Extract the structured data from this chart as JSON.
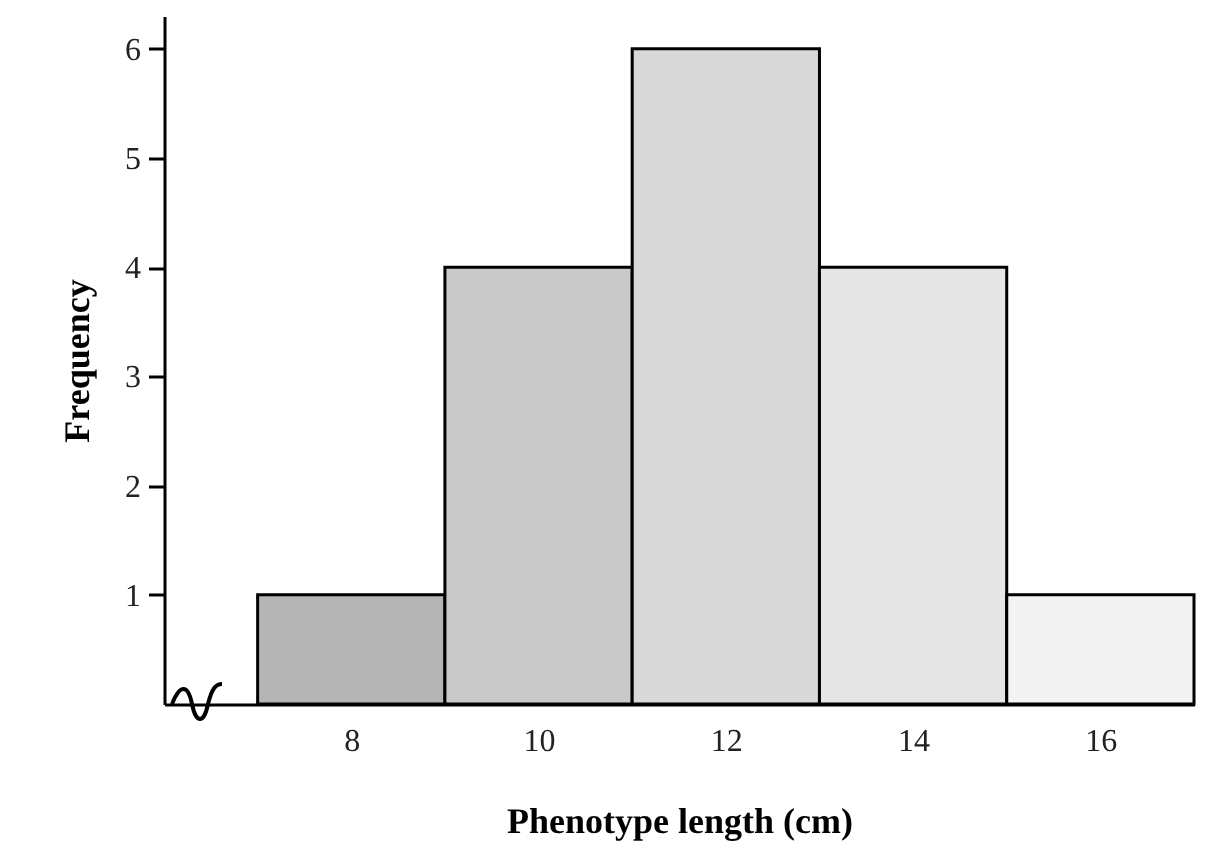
{
  "chart_data": {
    "type": "histogram",
    "xlabel": "Phenotype length (cm)",
    "ylabel": "Frequency",
    "bins": [
      7,
      9,
      11,
      13,
      15,
      17
    ],
    "values": [
      1,
      4,
      6,
      4,
      1
    ],
    "colors": [
      "#b5b5b5",
      "#c9c9c9",
      "#d9d9d9",
      "#e6e6e6",
      "#f3f3f3"
    ],
    "xlim": [
      6,
      17
    ],
    "xticks": [
      8,
      10,
      12,
      14,
      16
    ],
    "ylim": [
      0,
      6.3
    ],
    "yticks": [
      1,
      2,
      3,
      4,
      5,
      6
    ],
    "grid": false
  }
}
